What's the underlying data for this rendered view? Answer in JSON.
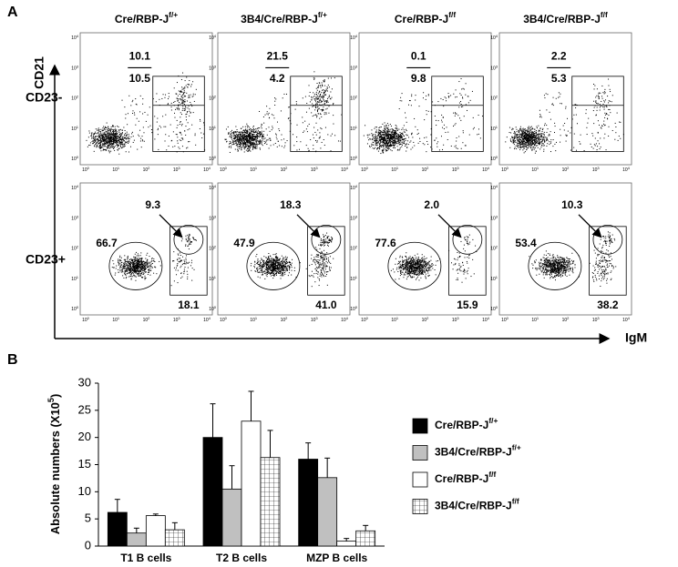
{
  "panel_a": {
    "label": "A",
    "y_axis_label": "CD21",
    "x_axis_label": "IgM",
    "columns": [
      {
        "base": "Cre/RBP-J",
        "sup": "f/+"
      },
      {
        "base": "3B4/Cre/RBP-J",
        "sup": "f/+"
      },
      {
        "base": "Cre/RBP-J",
        "sup": "f/f"
      },
      {
        "base": "3B4/Cre/RBP-J",
        "sup": "f/f"
      }
    ],
    "rows": [
      "CD23-",
      "CD23+"
    ],
    "tick_base": "10",
    "tick_exponents": [
      0,
      1,
      2,
      3,
      4
    ],
    "cd23_minus": [
      {
        "upper": "10.1",
        "lower": "10.5"
      },
      {
        "upper": "21.5",
        "lower": "4.2"
      },
      {
        "upper": "0.1",
        "lower": "9.8"
      },
      {
        "upper": "2.2",
        "lower": "5.3"
      }
    ],
    "cd23_plus": [
      {
        "circle": "9.3",
        "ellipse": "66.7",
        "box": "18.1"
      },
      {
        "circle": "18.3",
        "ellipse": "47.9",
        "box": "41.0"
      },
      {
        "circle": "2.0",
        "ellipse": "77.6",
        "box": "15.9"
      },
      {
        "circle": "10.3",
        "ellipse": "53.4",
        "box": "38.2"
      }
    ]
  },
  "panel_b_label": "B",
  "chart_data": {
    "type": "bar",
    "y_label": {
      "base": "Absolute numbers (X10",
      "sup": "5",
      "tail": ")"
    },
    "categories": [
      "T1 B cells",
      "T2 B cells",
      "MZP B cells"
    ],
    "series": [
      {
        "name": "Cre/RBP-J",
        "name_sup": "f/+",
        "color": "#000000",
        "values": [
          6.2,
          20.0,
          16.0
        ],
        "errors": [
          2.4,
          6.2,
          3.0
        ]
      },
      {
        "name": "3B4/Cre/RBP-J",
        "name_sup": "f/+",
        "color": "#c0c0c0",
        "values": [
          2.4,
          10.5,
          12.6
        ],
        "errors": [
          0.9,
          4.3,
          3.6
        ]
      },
      {
        "name": "Cre/RBP-J",
        "name_sup": "f/f",
        "color": "#ffffff",
        "values": [
          5.6,
          23.0,
          0.9
        ],
        "errors": [
          0.3,
          5.5,
          0.5
        ]
      },
      {
        "name": "3B4/Cre/RBP-J",
        "name_sup": "f/f",
        "color": "#ffffff",
        "pattern": "grid",
        "values": [
          3.0,
          16.3,
          2.8
        ],
        "errors": [
          1.3,
          5.0,
          1.0
        ]
      }
    ],
    "ylim": [
      0,
      30
    ],
    "yticks": [
      0,
      5,
      10,
      15,
      20,
      25,
      30
    ],
    "legend": "right"
  }
}
